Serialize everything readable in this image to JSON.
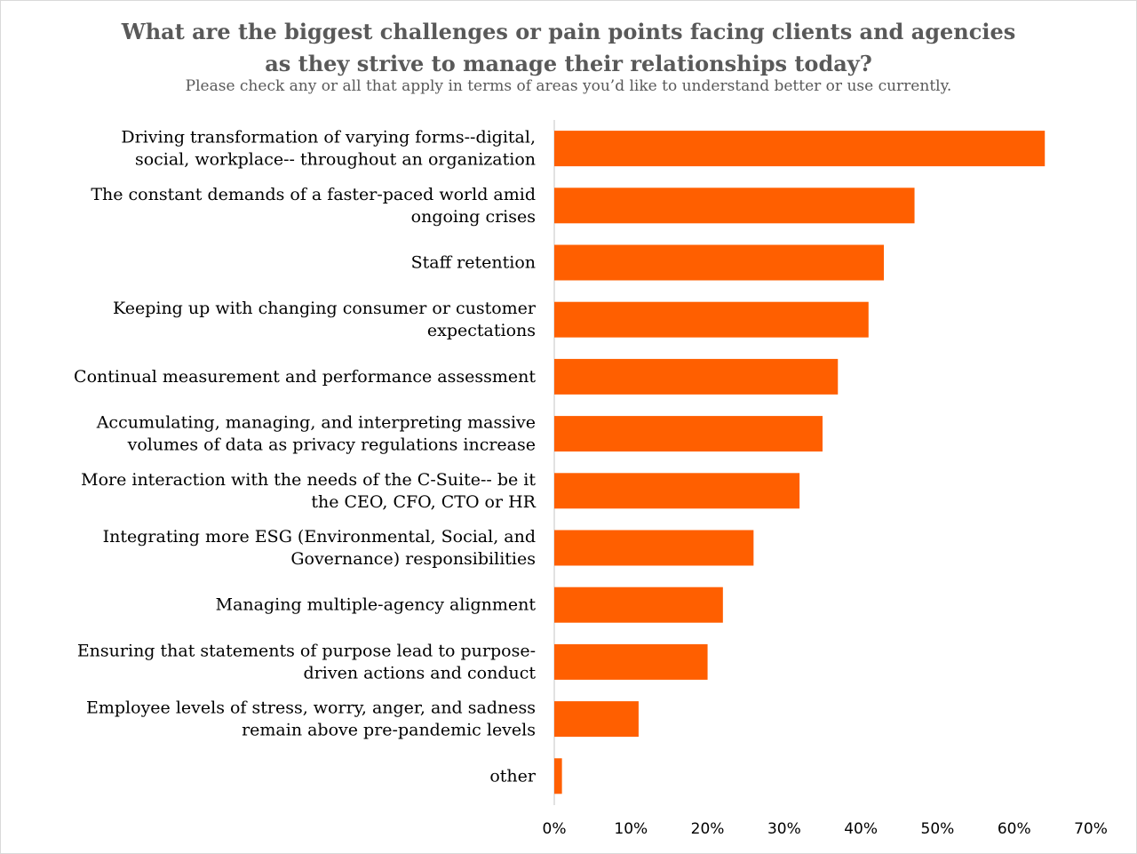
{
  "chart_data": {
    "type": "bar",
    "orientation": "horizontal",
    "title_lines": [
      "What are the biggest challenges or pain points facing clients and agencies",
      "as they strive to manage their relationships today?"
    ],
    "subtitle": "Please check any or all that apply in terms of areas you’d like to understand better or use currently.",
    "categories": [
      [
        "Driving transformation of varying forms--digital,",
        "social, workplace-- throughout an organization"
      ],
      [
        "The constant demands of a faster-paced world amid",
        "ongoing crises"
      ],
      [
        "Staff retention"
      ],
      [
        "Keeping up with changing consumer or customer",
        "expectations"
      ],
      [
        "Continual measurement and performance assessment"
      ],
      [
        "Accumulating, managing, and interpreting massive",
        "volumes of data as privacy regulations increase"
      ],
      [
        "More interaction with the needs of the C-Suite-- be it",
        "the CEO, CFO, CTO or HR"
      ],
      [
        "Integrating more ESG (Environmental, Social, and",
        "Governance) responsibilities"
      ],
      [
        "Managing multiple-agency alignment"
      ],
      [
        "Ensuring that statements of purpose lead to purpose-",
        "driven actions and conduct"
      ],
      [
        "Employee levels of stress, worry, anger, and sadness",
        "remain above pre-pandemic levels"
      ],
      [
        "other"
      ]
    ],
    "values": [
      64,
      47,
      43,
      41,
      37,
      35,
      32,
      26,
      22,
      20,
      11,
      1
    ],
    "value_unit": "%",
    "xlim": [
      0,
      70
    ],
    "x_ticks": [
      "0%",
      "10%",
      "20%",
      "30%",
      "40%",
      "50%",
      "60%",
      "70%"
    ],
    "grid": false,
    "legend": "none",
    "bar_color": "#ff5f00",
    "axis_color": "#d9d9d9"
  }
}
